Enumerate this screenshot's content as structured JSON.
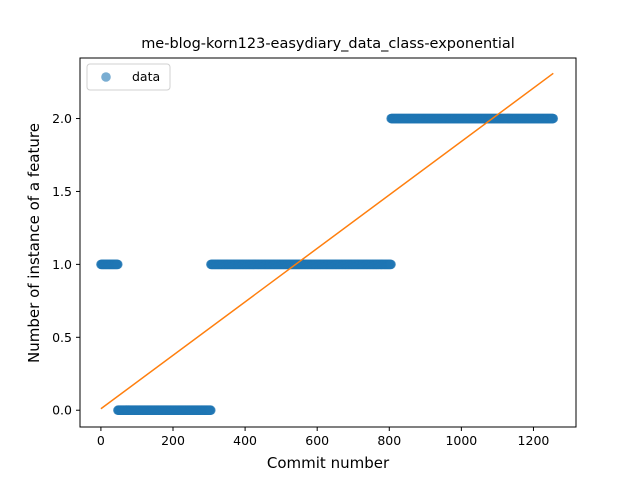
{
  "chart_data": {
    "type": "scatter",
    "title": "me-blog-korn123-easydiary_data_class-exponential",
    "xlabel": "Commit number",
    "ylabel": "Number of instance of a feature",
    "xlim": [
      -58,
      1318
    ],
    "ylim": [
      -0.115,
      2.415
    ],
    "xticks": [
      0,
      200,
      400,
      600,
      800,
      1000,
      1200
    ],
    "yticks": [
      0.0,
      0.5,
      1.0,
      1.5,
      2.0
    ],
    "xtick_labels": [
      "0",
      "200",
      "400",
      "600",
      "800",
      "1000",
      "1200"
    ],
    "ytick_labels": [
      "0.0",
      "0.5",
      "1.0",
      "1.5",
      "2.0"
    ],
    "legend": {
      "placement": "top-left",
      "entries": [
        {
          "label": "data"
        }
      ]
    },
    "series": [
      {
        "name": "data",
        "kind": "scatter",
        "color": "#1f77b4",
        "segments": [
          {
            "x_start": 0,
            "x_end": 47,
            "y": 1
          },
          {
            "x_start": 47,
            "x_end": 305,
            "y": 0
          },
          {
            "x_start": 305,
            "x_end": 805,
            "y": 1
          },
          {
            "x_start": 805,
            "x_end": 1255,
            "y": 2
          }
        ]
      },
      {
        "kind": "line",
        "color": "#ff7f0e",
        "x": [
          0,
          1255
        ],
        "y": [
          0.01,
          2.31
        ]
      }
    ],
    "grid": false
  }
}
